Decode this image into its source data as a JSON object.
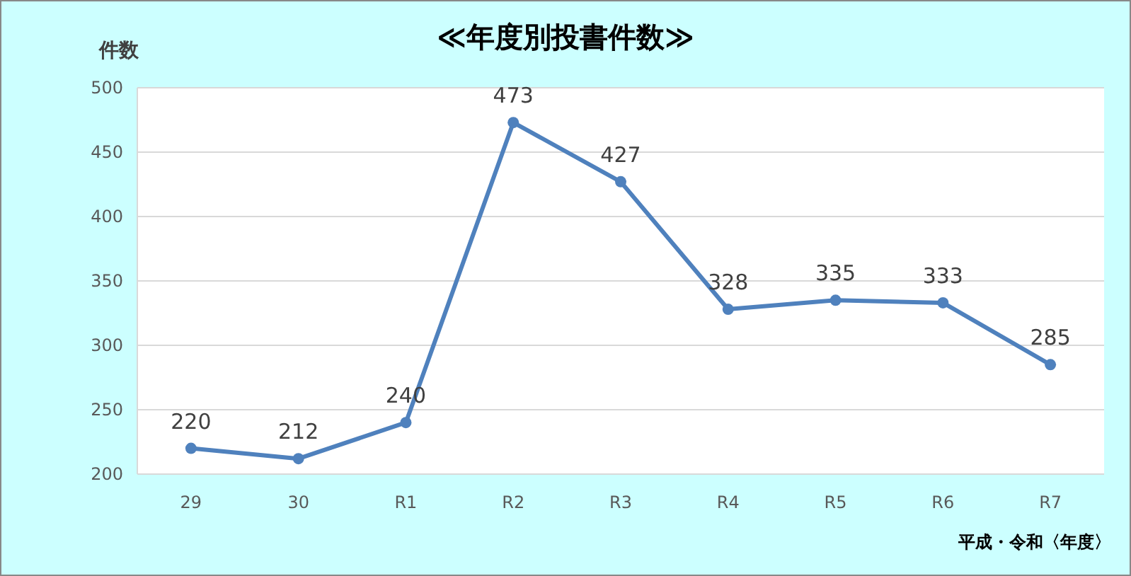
{
  "chart_data": {
    "type": "line",
    "title": "≪年度別投書件数≫",
    "ylabel": "件数",
    "xlabel": "平成・令和〈年度〉",
    "categories": [
      "29",
      "30",
      "R1",
      "R2",
      "R3",
      "R4",
      "R5",
      "R6",
      "R7"
    ],
    "values": [
      220,
      212,
      240,
      473,
      427,
      328,
      335,
      333,
      285
    ],
    "color": "#4f81bd",
    "ylim": [
      200,
      500
    ],
    "yticks": [
      200,
      250,
      300,
      350,
      400,
      450,
      500
    ],
    "grid": "y",
    "data_labels": true,
    "marker": "circle",
    "line_style": "solid"
  }
}
